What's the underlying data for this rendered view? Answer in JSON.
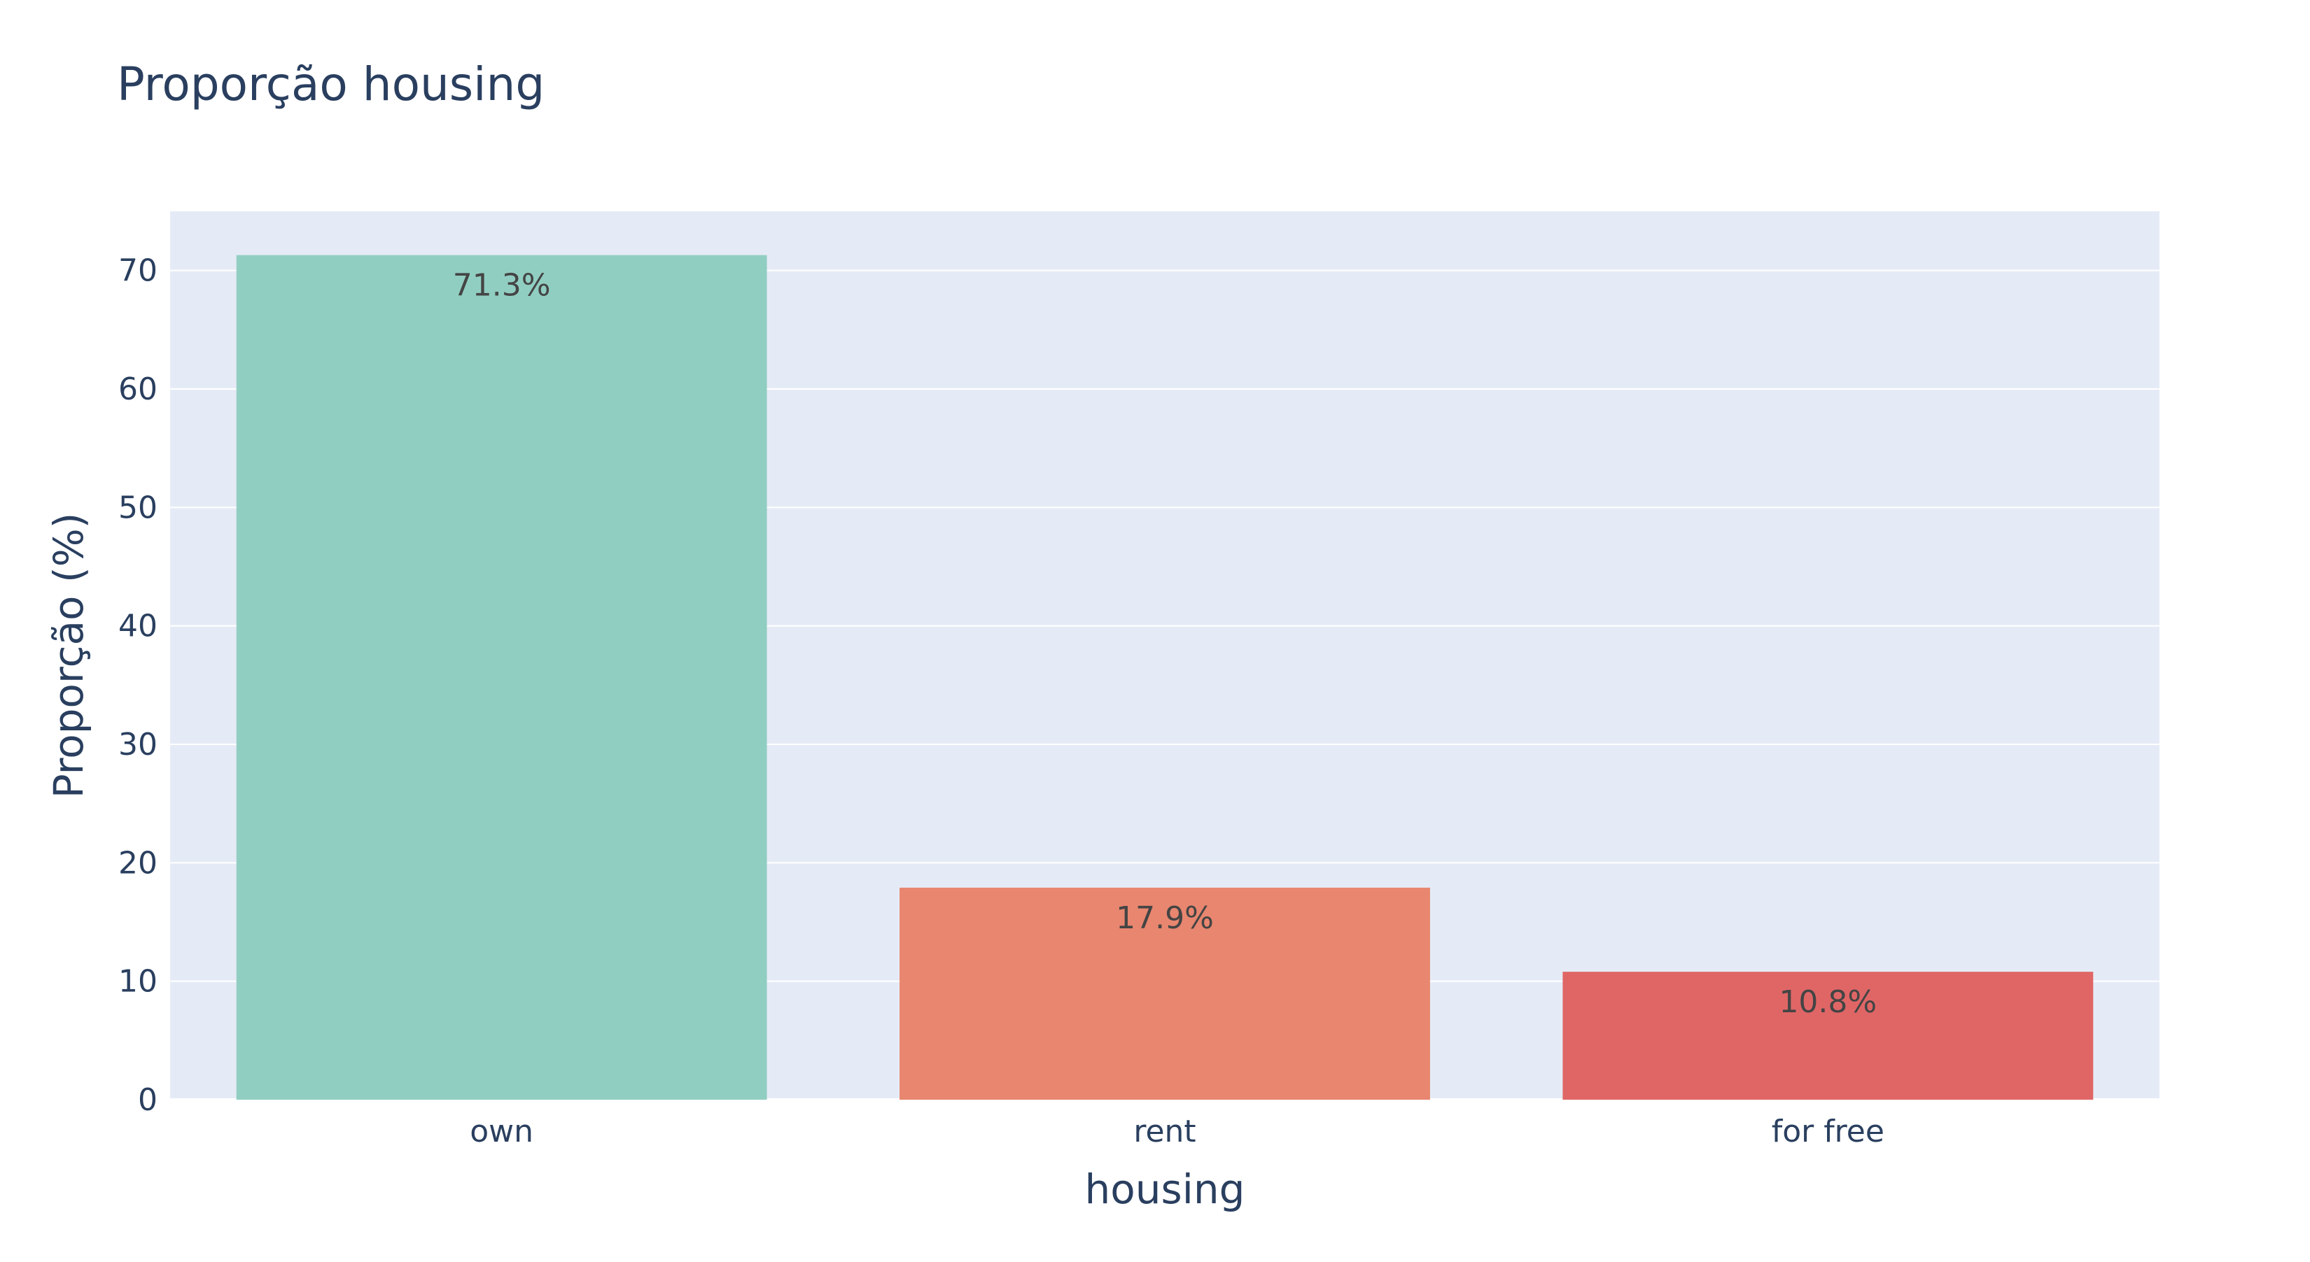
{
  "chart_data": {
    "type": "bar",
    "title": "Proporção housing",
    "xlabel": "housing",
    "ylabel": "Proporção (%)",
    "categories": [
      "own",
      "rent",
      "for free"
    ],
    "values": [
      71.3,
      17.9,
      10.8
    ],
    "data_labels": [
      "71.3%",
      "17.9%",
      "10.8%"
    ],
    "bar_colors": [
      "#91cec2",
      "#e8866f",
      "#e06666"
    ],
    "ylim": [
      0,
      75
    ],
    "yticks": [
      0,
      10,
      20,
      30,
      40,
      50,
      60,
      70
    ],
    "grid": true,
    "legend": "none"
  },
  "style": {
    "plot_background": "#e5ebf6",
    "grid_color": "#ffffff",
    "text_color": "#2a3f5f",
    "data_label_color": "#444444"
  }
}
